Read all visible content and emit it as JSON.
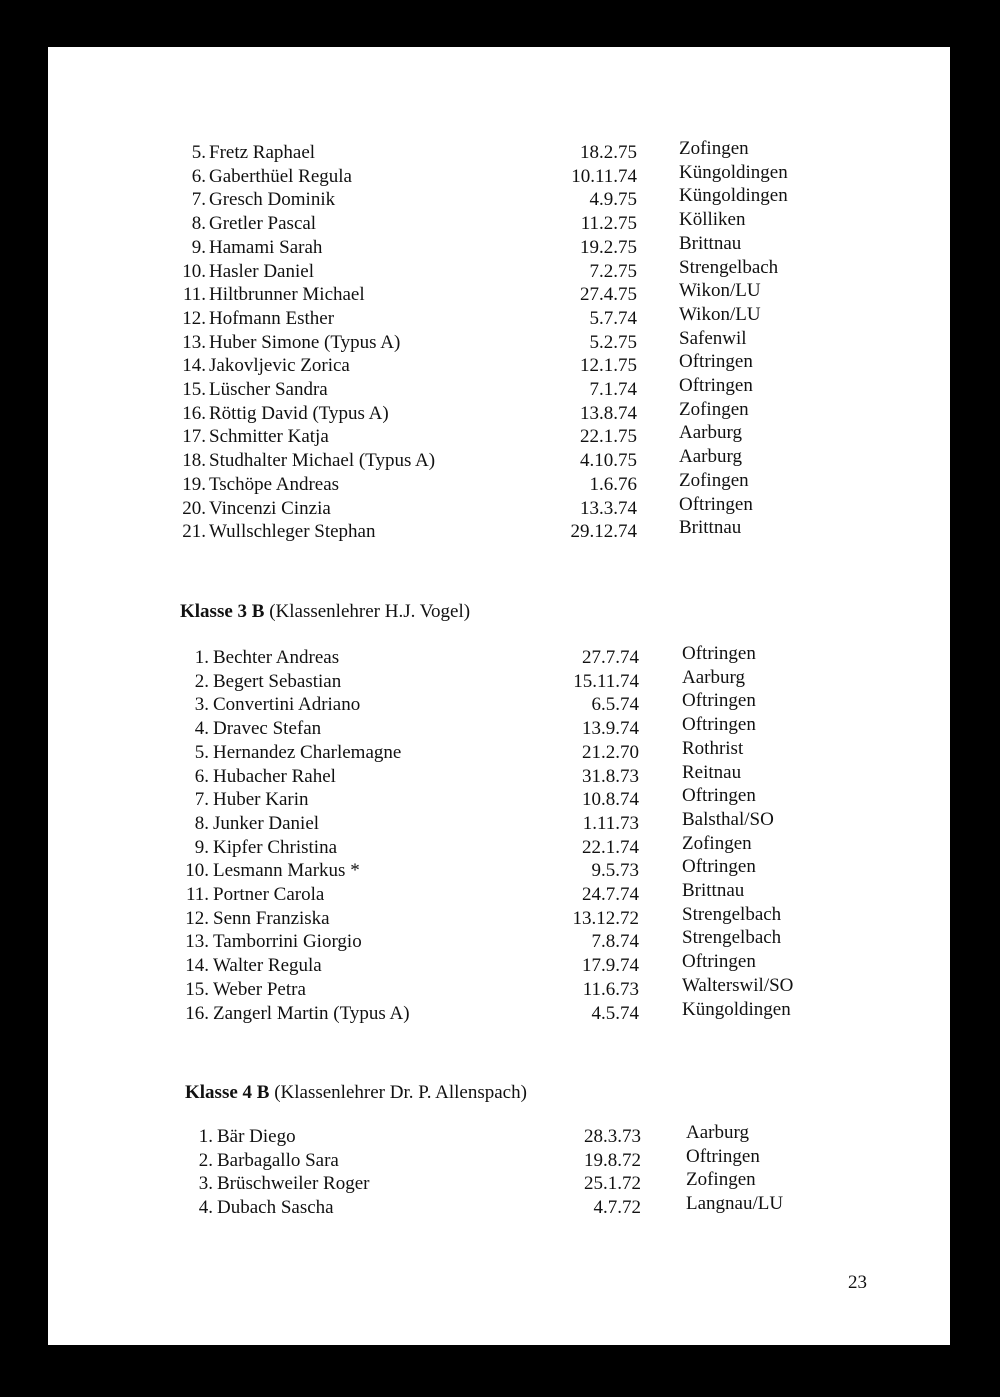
{
  "sections": [
    {
      "heading_bold": "",
      "heading_rest": "",
      "rows": [
        {
          "num": "5.",
          "name": "Fretz Raphael",
          "date": "18.2.75",
          "place": "Zofingen"
        },
        {
          "num": "6.",
          "name": "Gaberthüel Regula",
          "date": "10.11.74",
          "place": "Küngoldingen"
        },
        {
          "num": "7.",
          "name": "Gresch Dominik",
          "date": "4.9.75",
          "place": "Küngoldingen"
        },
        {
          "num": "8.",
          "name": "Gretler Pascal",
          "date": "11.2.75",
          "place": "Kölliken"
        },
        {
          "num": "9.",
          "name": "Hamami Sarah",
          "date": "19.2.75",
          "place": "Brittnau"
        },
        {
          "num": "10.",
          "name": "Hasler Daniel",
          "date": "7.2.75",
          "place": "Strengelbach"
        },
        {
          "num": "11.",
          "name": "Hiltbrunner Michael",
          "date": "27.4.75",
          "place": "Wikon/LU"
        },
        {
          "num": "12.",
          "name": "Hofmann Esther",
          "date": "5.7.74",
          "place": "Wikon/LU"
        },
        {
          "num": "13.",
          "name": "Huber Simone (Typus A)",
          "date": "5.2.75",
          "place": "Safenwil"
        },
        {
          "num": "14.",
          "name": "Jakovljevic Zorica",
          "date": "12.1.75",
          "place": "Oftringen"
        },
        {
          "num": "15.",
          "name": "Lüscher Sandra",
          "date": "7.1.74",
          "place": "Oftringen"
        },
        {
          "num": "16.",
          "name": "Röttig David (Typus A)",
          "date": "13.8.74",
          "place": "Zofingen"
        },
        {
          "num": "17.",
          "name": "Schmitter Katja",
          "date": "22.1.75",
          "place": "Aarburg"
        },
        {
          "num": "18.",
          "name": "Studhalter Michael (Typus A)",
          "date": "4.10.75",
          "place": "Aarburg"
        },
        {
          "num": "19.",
          "name": "Tschöpe Andreas",
          "date": "1.6.76",
          "place": "Zofingen"
        },
        {
          "num": "20.",
          "name": "Vincenzi Cinzia",
          "date": "13.3.74",
          "place": "Oftringen"
        },
        {
          "num": "21.",
          "name": "Wullschleger Stephan",
          "date": "29.12.74",
          "place": "Brittnau"
        }
      ]
    },
    {
      "heading_bold": "Klasse 3 B",
      "heading_rest": "(Klassenlehrer H.J. Vogel)",
      "rows": [
        {
          "num": "1.",
          "name": "Bechter Andreas",
          "date": "27.7.74",
          "place": "Oftringen"
        },
        {
          "num": "2.",
          "name": "Begert Sebastian",
          "date": "15.11.74",
          "place": "Aarburg"
        },
        {
          "num": "3.",
          "name": "Convertini Adriano",
          "date": "6.5.74",
          "place": "Oftringen"
        },
        {
          "num": "4.",
          "name": "Dravec Stefan",
          "date": "13.9.74",
          "place": "Oftringen"
        },
        {
          "num": "5.",
          "name": "Hernandez Charlemagne",
          "date": "21.2.70",
          "place": "Rothrist"
        },
        {
          "num": "6.",
          "name": "Hubacher Rahel",
          "date": "31.8.73",
          "place": "Reitnau"
        },
        {
          "num": "7.",
          "name": "Huber Karin",
          "date": "10.8.74",
          "place": "Oftringen"
        },
        {
          "num": "8.",
          "name": "Junker Daniel",
          "date": "1.11.73",
          "place": "Balsthal/SO"
        },
        {
          "num": "9.",
          "name": "Kipfer Christina",
          "date": "22.1.74",
          "place": "Zofingen"
        },
        {
          "num": "10.",
          "name": "Lesmann Markus *",
          "date": "9.5.73",
          "place": "Oftringen"
        },
        {
          "num": "11.",
          "name": "Portner Carola",
          "date": "24.7.74",
          "place": "Brittnau"
        },
        {
          "num": "12.",
          "name": "Senn Franziska",
          "date": "13.12.72",
          "place": "Strengelbach"
        },
        {
          "num": "13.",
          "name": "Tamborrini Giorgio",
          "date": "7.8.74",
          "place": "Strengelbach"
        },
        {
          "num": "14.",
          "name": "Walter Regula",
          "date": "17.9.74",
          "place": "Oftringen"
        },
        {
          "num": "15.",
          "name": "Weber Petra",
          "date": "11.6.73",
          "place": "Walterswil/SO"
        },
        {
          "num": "16.",
          "name": "Zangerl Martin (Typus A)",
          "date": "4.5.74",
          "place": "Küngoldingen"
        }
      ]
    },
    {
      "heading_bold": "Klasse 4 B",
      "heading_rest": "(Klassenlehrer Dr. P. Allenspach)",
      "rows": [
        {
          "num": "1.",
          "name": "Bär Diego",
          "date": "28.3.73",
          "place": "Aarburg"
        },
        {
          "num": "2.",
          "name": "Barbagallo Sara",
          "date": "19.8.72",
          "place": "Oftringen"
        },
        {
          "num": "3.",
          "name": "Brüschweiler Roger",
          "date": "25.1.72",
          "place": "Zofingen"
        },
        {
          "num": "4.",
          "name": "Dubach Sascha",
          "date": "4.7.72",
          "place": "Langnau/LU"
        }
      ]
    }
  ],
  "page_number": "23"
}
